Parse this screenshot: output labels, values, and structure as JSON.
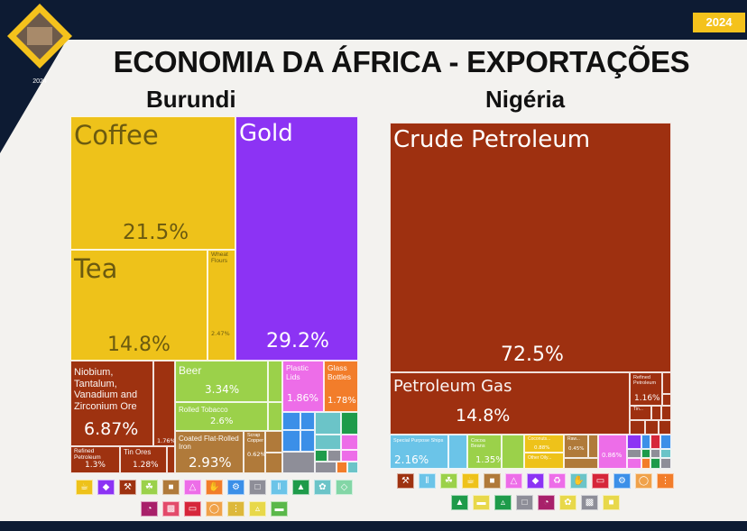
{
  "slide": {
    "title": "ECONOMIA DA ÁFRICA - EXPORTAÇÕES",
    "year_badge": "2024",
    "logo_year": "2024"
  },
  "chart_data": [
    {
      "type": "treemap",
      "title": "Burundi",
      "unit": "% of exports",
      "items": [
        {
          "name": "Coffee",
          "value": 21.5,
          "value_label": "21.5%",
          "color": "#eec21a"
        },
        {
          "name": "Tea",
          "value": 14.8,
          "value_label": "14.8%",
          "color": "#eec21a"
        },
        {
          "name": "Wheat Flours",
          "value": 2.47,
          "value_label": "2.47%",
          "color": "#eec21a"
        },
        {
          "name": "Gold",
          "value": 29.2,
          "value_label": "29.2%",
          "color": "#8c33f4"
        },
        {
          "name": "Niobium, Tantalum, Vanadium and Zirconium Ore",
          "value": 6.87,
          "value_label": "6.87%",
          "color": "#9e3210"
        },
        {
          "name": "Refined Petroleum",
          "value": 1.3,
          "value_label": "1.3%",
          "color": "#9e3210"
        },
        {
          "name": "Tin Ores",
          "value": 1.28,
          "value_label": "1.28%",
          "color": "#9e3210"
        },
        {
          "name": "",
          "value": 1.76,
          "value_label": "1.76%",
          "color": "#9e3210"
        },
        {
          "name": "Beer",
          "value": 3.34,
          "value_label": "3.34%",
          "color": "#9bd14a"
        },
        {
          "name": "Rolled Tobacco",
          "value": 2.6,
          "value_label": "2.6%",
          "color": "#9bd14a"
        },
        {
          "name": "Plastic Lids",
          "value": 1.86,
          "value_label": "1.86%",
          "color": "#ed6de8"
        },
        {
          "name": "Glass Bottles",
          "value": 1.78,
          "value_label": "1.78%",
          "color": "#f27d2a"
        },
        {
          "name": "Coated Flat-Rolled Iron",
          "value": 2.93,
          "value_label": "2.93%",
          "color": "#b07a3a"
        },
        {
          "name": "Scrap Copper",
          "value": 0.62,
          "value_label": "0.62%",
          "color": "#b07a3a"
        }
      ],
      "legend_icons": [
        "coffee-icon",
        "gem-icon",
        "pickaxe-icon",
        "wheat-icon",
        "anvil-icon",
        "flask-icon",
        "hand-icon",
        "gear-icon",
        "cube-icon",
        "road-icon",
        "shirt-icon",
        "leaf-icon",
        "gauge-icon",
        "bottle-icon",
        "tag-icon",
        "battery-icon",
        "cart-icon",
        "seeds-icon",
        "ship-icon"
      ]
    },
    {
      "type": "treemap",
      "title": "Nigéria",
      "unit": "% of exports",
      "items": [
        {
          "name": "Crude Petroleum",
          "value": 72.5,
          "value_label": "72.5%",
          "color": "#9e3010"
        },
        {
          "name": "Petroleum Gas",
          "value": 14.8,
          "value_label": "14.8%",
          "color": "#9e3010"
        },
        {
          "name": "Refined Petroleum",
          "value": 1.16,
          "value_label": "1.16%",
          "color": "#9e3010"
        },
        {
          "name": "Tin...",
          "value": null,
          "value_label": "",
          "color": "#9e3010"
        },
        {
          "name": "Special Purpose Ships",
          "value": 2.16,
          "value_label": "2.16%",
          "color": "#6bc4e8"
        },
        {
          "name": "Cocoa Beans",
          "value": 1.35,
          "value_label": "1.35%",
          "color": "#9bd14a"
        },
        {
          "name": "Coconuts...",
          "value": 0.88,
          "value_label": "0.88%",
          "color": "#eec21a"
        },
        {
          "name": "Other Oily...",
          "value": null,
          "value_label": "",
          "color": "#eec21a"
        },
        {
          "name": "Raw...",
          "value": 0.45,
          "value_label": "0.45%",
          "color": "#b07a3a"
        },
        {
          "name": "",
          "value": 0.86,
          "value_label": "0.86%",
          "color": "#ed6de8"
        }
      ],
      "legend_icons": [
        "pickaxe-icon",
        "road-icon",
        "wheat-icon",
        "coffee-icon",
        "anvil-icon",
        "flask-icon",
        "gem-icon",
        "recycle-icon",
        "hand-icon",
        "tag-icon",
        "gear-icon",
        "cart-icon",
        "seeds-icon",
        "shirt-icon",
        "bread-icon",
        "ship-icon",
        "cube-icon",
        "gauge-icon",
        "leaf-icon"
      ]
    }
  ]
}
